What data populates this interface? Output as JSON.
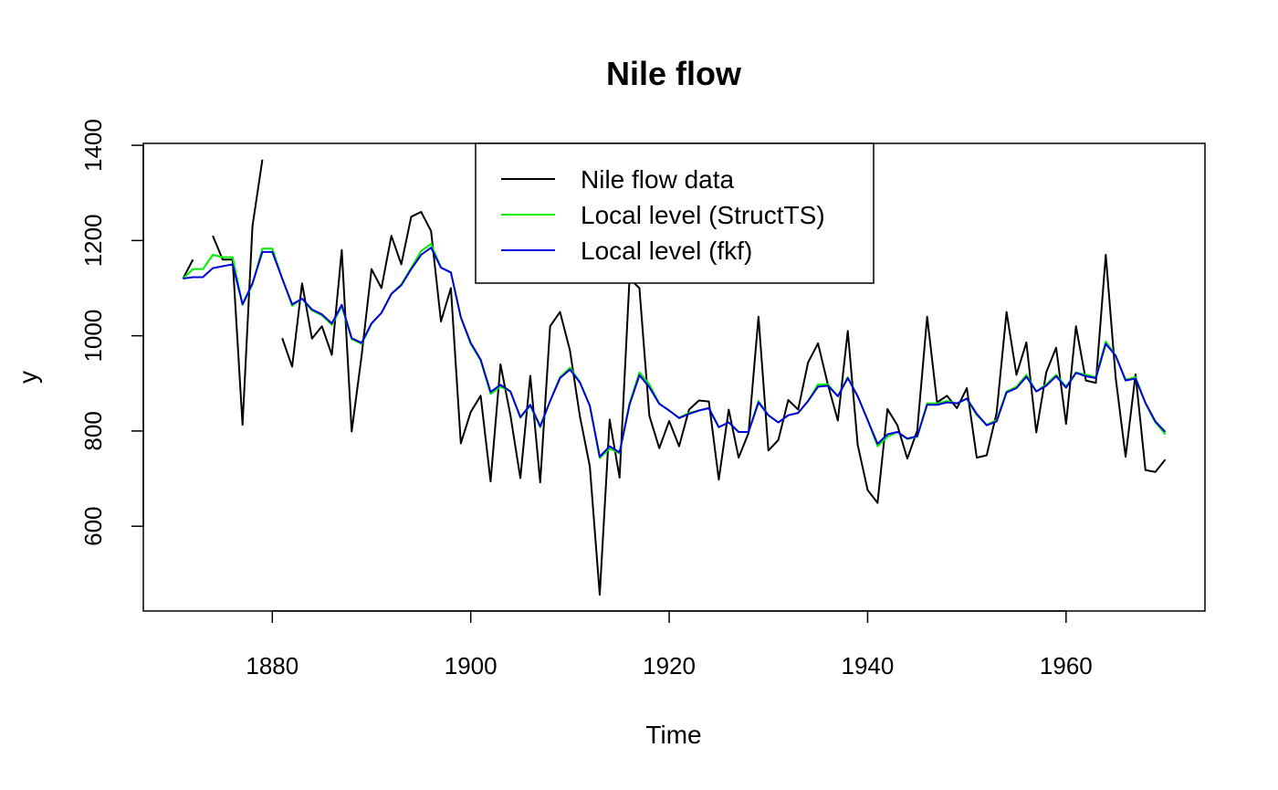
{
  "chart_data": {
    "type": "line",
    "title": "Nile flow",
    "xlabel": "Time",
    "ylabel": "y",
    "xlim": [
      1867,
      1974
    ],
    "ylim": [
      422,
      1404
    ],
    "xticks": [
      1880,
      1900,
      1920,
      1940,
      1960
    ],
    "yticks": [
      600,
      800,
      1000,
      1200,
      1400
    ],
    "grid": false,
    "legend_position": "top-center",
    "series": [
      {
        "name": "Nile flow data",
        "color": "#000000",
        "x_start": 1871,
        "values": [
          1120,
          1160,
          null,
          1210,
          1160,
          1160,
          813,
          1230,
          1370,
          null,
          995,
          935,
          1110,
          994,
          1020,
          960,
          1180,
          799,
          958,
          1140,
          1100,
          1210,
          1150,
          1250,
          1260,
          1220,
          1030,
          1100,
          774,
          840,
          874,
          694,
          940,
          833,
          701,
          916,
          692,
          1020,
          1050,
          969,
          831,
          726,
          456,
          824,
          702,
          1120,
          1100,
          832,
          764,
          821,
          768,
          845,
          864,
          862,
          698,
          845,
          744,
          796,
          1040,
          759,
          781,
          865,
          845,
          944,
          984,
          897,
          822,
          1010,
          771,
          676,
          649,
          846,
          812,
          742,
          801,
          1040,
          860,
          874,
          848,
          890,
          744,
          749,
          838,
          1050,
          918,
          986,
          797,
          923,
          975,
          815,
          1020,
          906,
          901,
          1170,
          912,
          746,
          919,
          718,
          714,
          740
        ]
      },
      {
        "name": "Local level (StructTS)",
        "color": "#00ee00",
        "x_start": 1871,
        "values": [
          1120,
          1140,
          1140,
          1170,
          1165,
          1165,
          1065,
          1108,
          1183,
          1183,
          1120,
          1063,
          1078,
          1053,
          1043,
          1023,
          1062,
          993,
          983,
          1025,
          1048,
          1088,
          1108,
          1143,
          1178,
          1193,
          1143,
          1133,
          1038,
          983,
          948,
          878,
          893,
          883,
          828,
          853,
          808,
          863,
          913,
          933,
          903,
          853,
          743,
          763,
          753,
          858,
          923,
          898,
          858,
          843,
          828,
          838,
          843,
          848,
          808,
          818,
          798,
          798,
          863,
          833,
          818,
          833,
          838,
          863,
          898,
          898,
          873,
          913,
          873,
          823,
          768,
          788,
          798,
          783,
          788,
          858,
          858,
          863,
          858,
          868,
          833,
          813,
          823,
          883,
          893,
          918,
          883,
          898,
          918,
          893,
          923,
          918,
          913,
          988,
          958,
          908,
          913,
          858,
          818,
          793
        ]
      },
      {
        "name": "Local level (fkf)",
        "color": "#0000dd",
        "x_start": 1871,
        "values": [
          1120,
          1123,
          1123,
          1142,
          1146,
          1150,
          1066,
          1110,
          1176,
          1176,
          1120,
          1066,
          1078,
          1055,
          1045,
          1026,
          1065,
          995,
          985,
          1026,
          1048,
          1088,
          1106,
          1140,
          1170,
          1185,
          1143,
          1133,
          1039,
          985,
          950,
          882,
          897,
          883,
          829,
          855,
          810,
          863,
          911,
          929,
          902,
          853,
          746,
          768,
          755,
          855,
          917,
          892,
          857,
          843,
          827,
          836,
          843,
          848,
          808,
          818,
          798,
          798,
          860,
          833,
          818,
          833,
          838,
          863,
          893,
          895,
          873,
          911,
          873,
          823,
          773,
          793,
          798,
          784,
          789,
          855,
          855,
          860,
          858,
          868,
          836,
          812,
          820,
          881,
          890,
          914,
          883,
          895,
          915,
          891,
          922,
          915,
          911,
          983,
          958,
          906,
          910,
          859,
          820,
          798
        ]
      }
    ]
  }
}
